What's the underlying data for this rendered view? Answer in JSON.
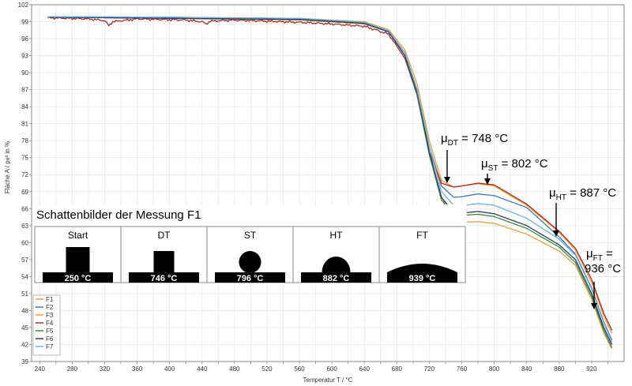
{
  "chart_data": {
    "type": "line",
    "xlabel": "Temperatur T / °C",
    "ylabel": "Fläche A / px² in %",
    "xlim": [
      230,
      960
    ],
    "ylim": [
      39,
      102
    ],
    "x_ticks": [
      240,
      280,
      320,
      360,
      400,
      440,
      480,
      520,
      560,
      600,
      640,
      680,
      720,
      760,
      800,
      840,
      880,
      920
    ],
    "y_ticks": [
      39,
      42,
      45,
      48,
      51,
      54,
      57,
      60,
      63,
      66,
      69,
      72,
      75,
      78,
      81,
      84,
      87,
      90,
      93,
      96,
      99,
      102
    ],
    "grid": true,
    "legend_position": "bottom-left",
    "series": [
      {
        "name": "F1",
        "color": "#e0a040",
        "points": [
          [
            250,
            99.8
          ],
          [
            400,
            99.6
          ],
          [
            560,
            99.3
          ],
          [
            640,
            98.6
          ],
          [
            670,
            97.2
          ],
          [
            690,
            93
          ],
          [
            705,
            86
          ],
          [
            720,
            76
          ],
          [
            735,
            68
          ],
          [
            750,
            64.2
          ],
          [
            760,
            63.6
          ],
          [
            780,
            63.7
          ],
          [
            800,
            63.4
          ],
          [
            840,
            61.5
          ],
          [
            880,
            58.5
          ],
          [
            900,
            56
          ],
          [
            920,
            50
          ],
          [
            935,
            44
          ],
          [
            945,
            41.2
          ]
        ]
      },
      {
        "name": "F2",
        "color": "#3a78b8",
        "points": [
          [
            250,
            99.9
          ],
          [
            400,
            99.8
          ],
          [
            560,
            99.5
          ],
          [
            640,
            98.8
          ],
          [
            670,
            97.3
          ],
          [
            690,
            93.5
          ],
          [
            705,
            87
          ],
          [
            720,
            77
          ],
          [
            735,
            70
          ],
          [
            750,
            68
          ],
          [
            760,
            68.1
          ],
          [
            780,
            68.6
          ],
          [
            800,
            68.3
          ],
          [
            840,
            66.2
          ],
          [
            880,
            61
          ],
          [
            900,
            58
          ],
          [
            920,
            52
          ],
          [
            935,
            46
          ],
          [
            945,
            42.8
          ]
        ]
      },
      {
        "name": "F3",
        "color": "#f0a030",
        "points": [
          [
            250,
            99.8
          ],
          [
            400,
            99.7
          ],
          [
            560,
            99.6
          ],
          [
            640,
            99
          ],
          [
            670,
            97.6
          ],
          [
            690,
            94
          ],
          [
            705,
            88
          ],
          [
            720,
            78
          ],
          [
            735,
            71
          ],
          [
            750,
            69.8
          ],
          [
            760,
            70
          ],
          [
            780,
            70.4
          ],
          [
            800,
            70
          ],
          [
            840,
            66.6
          ],
          [
            880,
            61.8
          ],
          [
            900,
            58.7
          ],
          [
            920,
            53
          ],
          [
            935,
            47
          ],
          [
            945,
            44
          ]
        ]
      },
      {
        "name": "F4",
        "color": "#b02828",
        "points": [
          [
            250,
            99.7
          ],
          [
            300,
            99.5
          ],
          [
            320,
            99.2
          ],
          [
            325,
            98.3
          ],
          [
            330,
            99
          ],
          [
            360,
            99.5
          ],
          [
            420,
            99.3
          ],
          [
            440,
            99
          ],
          [
            445,
            98.6
          ],
          [
            450,
            99.1
          ],
          [
            480,
            99.3
          ],
          [
            560,
            98.9
          ],
          [
            600,
            98.6
          ],
          [
            640,
            98.2
          ],
          [
            670,
            96.8
          ],
          [
            690,
            92.5
          ],
          [
            705,
            86
          ],
          [
            720,
            76
          ],
          [
            735,
            70.5
          ],
          [
            750,
            69.8
          ],
          [
            760,
            70
          ],
          [
            780,
            70.5
          ],
          [
            800,
            70.2
          ],
          [
            840,
            66.8
          ],
          [
            880,
            62
          ],
          [
            900,
            59
          ],
          [
            920,
            53.5
          ],
          [
            935,
            47.5
          ],
          [
            945,
            44.5
          ]
        ]
      },
      {
        "name": "F5",
        "color": "#3f8a3f",
        "points": [
          [
            250,
            99.8
          ],
          [
            400,
            99.6
          ],
          [
            560,
            99.4
          ],
          [
            640,
            98.7
          ],
          [
            670,
            97.2
          ],
          [
            690,
            93
          ],
          [
            705,
            86
          ],
          [
            720,
            75.5
          ],
          [
            735,
            67.5
          ],
          [
            750,
            65
          ],
          [
            760,
            64.8
          ],
          [
            780,
            65
          ],
          [
            800,
            64.6
          ],
          [
            840,
            62.5
          ],
          [
            880,
            59.2
          ],
          [
            900,
            56.5
          ],
          [
            920,
            50.5
          ],
          [
            935,
            44.5
          ],
          [
            945,
            41.5
          ]
        ]
      },
      {
        "name": "F6",
        "color": "#2a3f5f",
        "points": [
          [
            250,
            99.8
          ],
          [
            400,
            99.6
          ],
          [
            560,
            99.4
          ],
          [
            640,
            98.7
          ],
          [
            670,
            97.2
          ],
          [
            690,
            93
          ],
          [
            705,
            86.5
          ],
          [
            720,
            76
          ],
          [
            735,
            68
          ],
          [
            750,
            65.3
          ],
          [
            760,
            65.2
          ],
          [
            780,
            65.5
          ],
          [
            800,
            65.1
          ],
          [
            840,
            63
          ],
          [
            880,
            59.6
          ],
          [
            900,
            57
          ],
          [
            920,
            51
          ],
          [
            935,
            45
          ],
          [
            945,
            42
          ]
        ]
      },
      {
        "name": "F7",
        "color": "#6ab0e8",
        "points": [
          [
            250,
            99.9
          ],
          [
            400,
            99.8
          ],
          [
            560,
            99.6
          ],
          [
            640,
            98.9
          ],
          [
            670,
            97.4
          ],
          [
            690,
            93.5
          ],
          [
            705,
            87
          ],
          [
            720,
            77
          ],
          [
            735,
            69
          ],
          [
            750,
            66.6
          ],
          [
            760,
            66.5
          ],
          [
            780,
            66.9
          ],
          [
            800,
            66.6
          ],
          [
            840,
            64.3
          ],
          [
            880,
            60.6
          ],
          [
            900,
            57.8
          ],
          [
            920,
            51.8
          ],
          [
            935,
            45.8
          ],
          [
            945,
            42.5
          ]
        ]
      }
    ],
    "annotations": [
      {
        "symbol": "μ",
        "sub": "DT",
        "text": " = 748 °C",
        "x": 748,
        "y": 69.8
      },
      {
        "symbol": "μ",
        "sub": "ST",
        "text": " = 802 °C",
        "x": 802,
        "y": 70.1
      },
      {
        "symbol": "μ",
        "sub": "HT",
        "text": " = 887 °C",
        "x": 887,
        "y": 61
      },
      {
        "symbol": "μ",
        "sub": "FT",
        "text": " =",
        "line2": "936 °C",
        "x": 936,
        "y": 45.8
      }
    ],
    "inset": {
      "title": "Schattenbilder der Messung F1",
      "frames": [
        {
          "label": "Start",
          "temp": "250 °C",
          "shape": "rect"
        },
        {
          "label": "DT",
          "temp": "746 °C",
          "shape": "rect-small"
        },
        {
          "label": "ST",
          "temp": "796 °C",
          "shape": "sphere"
        },
        {
          "label": "HT",
          "temp": "882 °C",
          "shape": "hemisphere"
        },
        {
          "label": "FT",
          "temp": "939 °C",
          "shape": "flat"
        }
      ]
    }
  }
}
